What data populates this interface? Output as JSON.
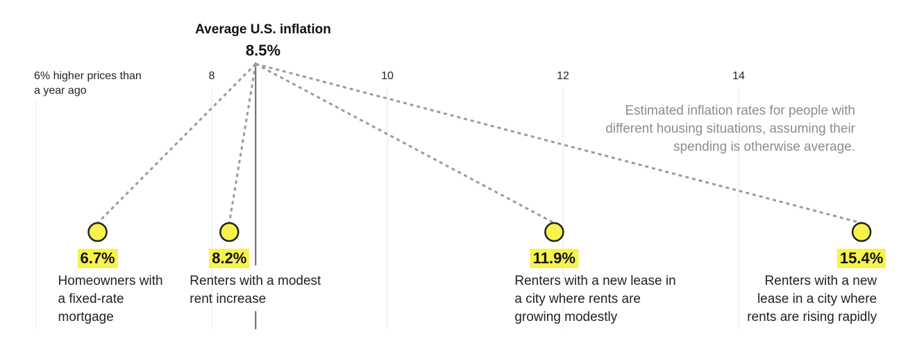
{
  "header": {
    "average_title": "Average U.S. inflation",
    "average_value_label": "8.5%"
  },
  "axis": {
    "first_tick_note": "6% higher prices than a year ago",
    "ticks": [
      {
        "value": 6,
        "label": ""
      },
      {
        "value": 8,
        "label": "8"
      },
      {
        "value": 10,
        "label": "10"
      },
      {
        "value": 12,
        "label": "12"
      },
      {
        "value": 14,
        "label": "14"
      }
    ]
  },
  "note": "Estimated inflation rates for people with different housing situations, assuming their spending is otherwise average.",
  "chart_data": {
    "type": "scatter",
    "title": "Average U.S. inflation",
    "xlabel": "",
    "ylabel": "",
    "xlim": [
      6,
      15.4
    ],
    "average": {
      "value": 8.5,
      "label": "8.5%"
    },
    "points": [
      {
        "value": 6.7,
        "label": "6.7%",
        "description": "Homeowners with a fixed-rate mortgage"
      },
      {
        "value": 8.2,
        "label": "8.2%",
        "description": "Renters with a modest rent increase"
      },
      {
        "value": 11.9,
        "label": "11.9%",
        "description": "Renters with a new lease in a city where rents are growing modestly"
      },
      {
        "value": 15.4,
        "label": "15.4%",
        "description": "Renters with a new lease in a city where rents are rising rapidly"
      }
    ],
    "colors": {
      "highlight": "#f6f34f",
      "connector": "#9a9a9a",
      "grid": "#e6e6e6",
      "note": "#8c8c8c"
    }
  }
}
